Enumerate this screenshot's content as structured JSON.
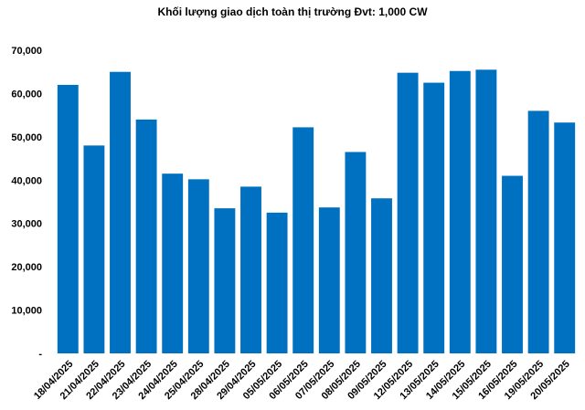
{
  "chart_data": {
    "type": "bar",
    "title": "Khối lượng giao dịch toàn thị trường Đvt: 1,000 CW",
    "xlabel": "",
    "ylabel": "",
    "ylim": [
      0,
      70000
    ],
    "yticks": [
      0,
      10000,
      20000,
      30000,
      40000,
      50000,
      60000,
      70000
    ],
    "ytick_labels": [
      "-",
      "10,000",
      "20,000",
      "30,000",
      "40,000",
      "50,000",
      "60,000",
      "70,000"
    ],
    "grid": false,
    "legend": "none",
    "bar_color": "#0070c0",
    "categories": [
      "18/04/2025",
      "21/04/2025",
      "22/04/2025",
      "23/04/2025",
      "24/04/2025",
      "25/04/2025",
      "28/04/2025",
      "29/04/2025",
      "05/05/2025",
      "06/05/2025",
      "07/05/2025",
      "08/05/2025",
      "09/05/2025",
      "12/05/2025",
      "13/05/2025",
      "14/05/2025",
      "15/05/2025",
      "16/05/2025",
      "19/05/2025",
      "20/05/2025"
    ],
    "values": [
      62000,
      48000,
      65000,
      54000,
      41500,
      40200,
      33500,
      38500,
      32500,
      52200,
      33700,
      46500,
      35800,
      64800,
      62500,
      65200,
      65500,
      41000,
      56000,
      53300
    ]
  }
}
